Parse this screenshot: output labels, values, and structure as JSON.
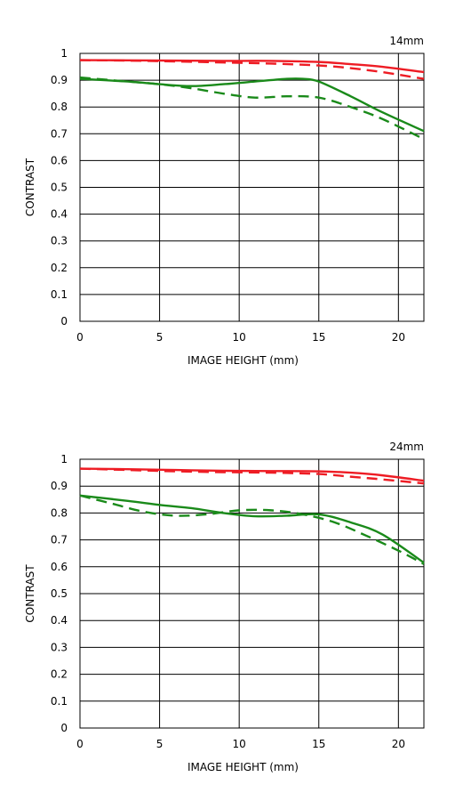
{
  "chart_data": [
    {
      "type": "line",
      "title": "14mm",
      "xlabel": "IMAGE HEIGHT (mm)",
      "ylabel": "CONTRAST",
      "xlim": [
        0,
        21.6
      ],
      "ylim": [
        0,
        1
      ],
      "xticks": [
        "0",
        "5",
        "10",
        "15",
        "20"
      ],
      "yticks": [
        "0",
        "0.1",
        "0.2",
        "0.3",
        "0.4",
        "0.5",
        "0.6",
        "0.7",
        "0.8",
        "0.9",
        "1"
      ],
      "grid": true,
      "series": [
        {
          "color": "#ee1c24",
          "style": "solid",
          "x": [
            0,
            3,
            6,
            9,
            12,
            15,
            17,
            19,
            21.6
          ],
          "y": [
            0.975,
            0.974,
            0.973,
            0.972,
            0.972,
            0.968,
            0.96,
            0.95,
            0.93
          ]
        },
        {
          "color": "#ee1c24",
          "style": "dashed",
          "x": [
            0,
            3,
            6,
            9,
            12,
            15,
            17,
            19,
            21.6
          ],
          "y": [
            0.975,
            0.973,
            0.97,
            0.966,
            0.962,
            0.955,
            0.945,
            0.93,
            0.905
          ]
        },
        {
          "color": "#1a8a1a",
          "style": "solid",
          "x": [
            0,
            3,
            5,
            7,
            9,
            11,
            13,
            14,
            15,
            17,
            19,
            21.6
          ],
          "y": [
            0.905,
            0.895,
            0.885,
            0.878,
            0.885,
            0.895,
            0.905,
            0.905,
            0.895,
            0.84,
            0.78,
            0.71
          ]
        },
        {
          "color": "#1a8a1a",
          "style": "dashed",
          "x": [
            0,
            3,
            5,
            7,
            9,
            11,
            13,
            15,
            17,
            19,
            21.6
          ],
          "y": [
            0.91,
            0.895,
            0.885,
            0.87,
            0.85,
            0.835,
            0.84,
            0.835,
            0.8,
            0.755,
            0.68
          ]
        }
      ]
    },
    {
      "type": "line",
      "title": "24mm",
      "xlabel": "IMAGE HEIGHT (mm)",
      "ylabel": "CONTRAST",
      "xlim": [
        0,
        21.6
      ],
      "ylim": [
        0,
        1
      ],
      "xticks": [
        "0",
        "5",
        "10",
        "15",
        "20"
      ],
      "yticks": [
        "0",
        "0.1",
        "0.2",
        "0.3",
        "0.4",
        "0.5",
        "0.6",
        "0.7",
        "0.8",
        "0.9",
        "1"
      ],
      "grid": true,
      "series": [
        {
          "color": "#ee1c24",
          "style": "solid",
          "x": [
            0,
            3,
            6,
            9,
            12,
            15,
            17,
            19,
            21.6
          ],
          "y": [
            0.965,
            0.963,
            0.96,
            0.957,
            0.956,
            0.955,
            0.95,
            0.94,
            0.92
          ]
        },
        {
          "color": "#ee1c24",
          "style": "dashed",
          "x": [
            0,
            3,
            6,
            9,
            12,
            15,
            17,
            19,
            21.6
          ],
          "y": [
            0.965,
            0.96,
            0.955,
            0.952,
            0.95,
            0.945,
            0.935,
            0.925,
            0.91
          ]
        },
        {
          "color": "#1a8a1a",
          "style": "solid",
          "x": [
            0,
            3,
            5,
            7,
            9,
            11,
            13,
            15,
            17,
            19,
            21.6
          ],
          "y": [
            0.865,
            0.845,
            0.83,
            0.818,
            0.8,
            0.788,
            0.79,
            0.795,
            0.765,
            0.72,
            0.615
          ]
        },
        {
          "color": "#1a8a1a",
          "style": "dashed",
          "x": [
            0,
            2,
            4,
            6,
            8,
            10,
            12,
            14,
            16,
            18,
            20,
            21.6
          ],
          "y": [
            0.865,
            0.835,
            0.805,
            0.79,
            0.795,
            0.81,
            0.81,
            0.795,
            0.765,
            0.715,
            0.66,
            0.61
          ]
        }
      ]
    }
  ]
}
